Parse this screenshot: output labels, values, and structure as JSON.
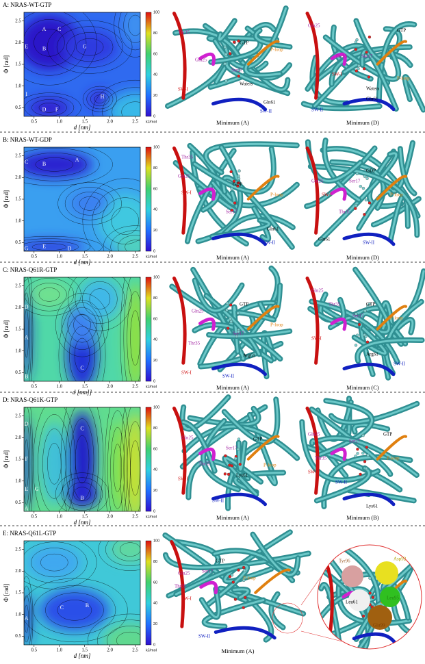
{
  "axes": {
    "yticks": [
      "0.5",
      "1.0",
      "1.5",
      "2.0",
      "2.5"
    ],
    "xticks": [
      "0.5",
      "1.0",
      "1.5",
      "2.0",
      "2.5"
    ],
    "colorbar_ticks": [
      "0",
      "20",
      "40",
      "60",
      "80",
      "100"
    ],
    "colorbar_unit": "kJ/mol"
  },
  "panels": [
    {
      "title": "A: NRAS-WT-GTP",
      "y_label": "Φ [rad]",
      "x_label": "d [nm]",
      "minima": [
        "A",
        "C",
        "E",
        "B",
        "G",
        "I",
        "D",
        "F",
        "H"
      ],
      "structures": [
        {
          "caption": "Minimum (A)",
          "labels": [
            "Thr35",
            "Gln25",
            "GTP",
            "Ser17",
            "P-loop",
            "SW-I",
            "Waters",
            "Gln61",
            "SW-II"
          ]
        },
        {
          "caption": "Minimum (D)",
          "labels": [
            "Gln25",
            "GTP",
            "Thr35",
            "Ser17",
            "SW-I",
            "P-loop",
            "Waters",
            "Gln61",
            "SW-II"
          ]
        }
      ]
    },
    {
      "title": "B: NRAS-WT-GDP",
      "y_label": "Φ [rad]",
      "x_label": "d [nm]",
      "minima": [
        "C",
        "B",
        "A",
        "G",
        "E",
        "D"
      ],
      "structures": [
        {
          "caption": "Minimum (A)",
          "labels": [
            "Thr35",
            "Gln25",
            "GDP",
            "SW-I",
            "Ser17",
            "P-loop",
            "Gln61",
            "SW-II"
          ]
        },
        {
          "caption": "Minimum (D)",
          "labels": [
            "GDP",
            "Gln25",
            "Ser17",
            "SW-I",
            "P-loop",
            "Thr35",
            "Gln61",
            "SW-II"
          ]
        }
      ]
    },
    {
      "title": "C: NRAS-Q61R-GTP",
      "y_label": "Φ [rad]",
      "x_label": "d [nm]]",
      "minima": [
        "D",
        "A",
        "C",
        "B"
      ],
      "structures": [
        {
          "caption": "Minimum (A)",
          "labels": [
            "GTP",
            "Gln25",
            "P-loop",
            "Ser17",
            "Thr35",
            "Arg61",
            "SW-I",
            "SW-II"
          ]
        },
        {
          "caption": "Minimum (C)",
          "labels": [
            "Gln25",
            "Thr35",
            "GTP",
            "Ser17",
            "P-loop",
            "SW-I",
            "Arg61",
            "SW-II"
          ]
        }
      ]
    },
    {
      "title": "D: NRAS-Q61K-GTP",
      "y_label": "Φ [rad]",
      "x_label": "d [nm]",
      "minima": [
        "D",
        "C",
        "F",
        "E",
        "G",
        "B",
        "A"
      ],
      "structures": [
        {
          "caption": "Minimum (A)",
          "labels": [
            "Gln25",
            "GTP",
            "Ser17",
            "Thr35",
            "P-loop",
            "SW-I",
            "Lys61",
            "SW-II"
          ]
        },
        {
          "caption": "Minimum (B)",
          "labels": [
            "Gln25",
            "GTP",
            "Ser17",
            "Thr35",
            "P-loop",
            "SW-I",
            "SW-II",
            "Lys61"
          ]
        }
      ]
    },
    {
      "title": "E: NRAS-Q61L-GTP",
      "y_label": "Φ [rad]",
      "x_label": "d [nm]",
      "minima": [
        "C",
        "B",
        "A"
      ],
      "structures": [
        {
          "caption": "Minimum (A)",
          "labels": [
            "GTP",
            "Gln25",
            "Thr35",
            "Ser17",
            "P-loop",
            "SW-I",
            "SW-II"
          ]
        }
      ],
      "zoom_labels": [
        "Tyr96",
        "Asp92",
        "Leu95",
        "Leu61",
        "Glu99"
      ]
    }
  ]
}
